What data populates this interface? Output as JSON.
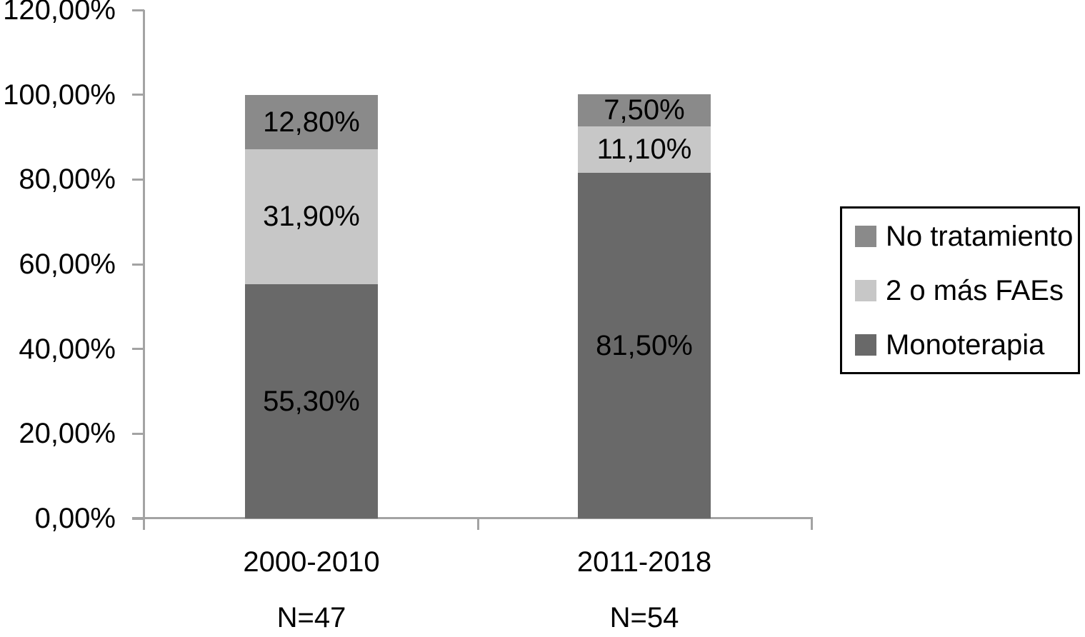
{
  "chart_data": {
    "type": "bar",
    "stacked": true,
    "title": "",
    "unit": "%",
    "decimal_style": "comma",
    "categories": [
      "2000-2010",
      "2011-2018"
    ],
    "category_sublabels": [
      "N=47",
      "N=54"
    ],
    "series": [
      {
        "name": "Monoterapia",
        "color": "#696969",
        "values": [
          55.3,
          81.5
        ],
        "display_labels": [
          "55,30%",
          "81,50%"
        ]
      },
      {
        "name": "2 o más FAEs",
        "color": "#c7c7c7",
        "values": [
          31.9,
          11.1
        ],
        "display_labels": [
          "31,90%",
          "11,10%"
        ]
      },
      {
        "name": "No tratamiento",
        "color": "#8a8a8a",
        "values": [
          12.8,
          7.5
        ],
        "display_labels": [
          "12,80%",
          "7,50%"
        ]
      }
    ],
    "y_axis": {
      "min": 0,
      "max": 120,
      "step": 20,
      "tick_labels": [
        "0,00%",
        "20,00%",
        "40,00%",
        "60,00%",
        "80,00%",
        "100,00%",
        "120,00%"
      ]
    },
    "legend": {
      "position": "right",
      "entries": [
        "No tratamiento",
        "2 o más FAEs",
        "Monoterapia"
      ]
    },
    "grid": false,
    "axis_color": "#a3a3a3",
    "text_color": "#000000"
  }
}
